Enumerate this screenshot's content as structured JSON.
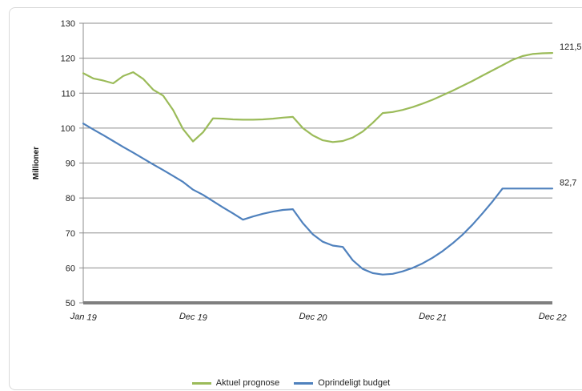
{
  "chart_data": {
    "type": "line",
    "title": "",
    "ylabel": "Millioner",
    "xlabel": "",
    "ylim": [
      50,
      130
    ],
    "yticks": [
      "130",
      "120",
      "110",
      "100",
      "90",
      "80",
      "70",
      "60",
      "50"
    ],
    "xticks": [
      "Jan 19",
      "Dec 19",
      "Dec 20",
      "Dec 21",
      "Dec 22"
    ],
    "x": [
      "Jan 19",
      "Feb 19",
      "Mar 19",
      "Apr 19",
      "May 19",
      "Jun 19",
      "Jul 19",
      "Aug 19",
      "Sep 19",
      "Oct 19",
      "Nov 19",
      "Dec 19",
      "Jan 20",
      "Feb 20",
      "Mar 20",
      "Apr 20",
      "May 20",
      "Jun 20",
      "Jul 20",
      "Aug 20",
      "Sep 20",
      "Oct 20",
      "Nov 20",
      "Dec 20",
      "Jan 21",
      "Feb 21",
      "Mar 21",
      "Apr 21",
      "May 21",
      "Jun 21",
      "Jul 21",
      "Aug 21",
      "Sep 21",
      "Oct 21",
      "Nov 21",
      "Dec 21",
      "Jan 22",
      "Feb 22",
      "Mar 22",
      "Apr 22",
      "May 22",
      "Jun 22",
      "Jul 22",
      "Aug 22",
      "Sep 22",
      "Oct 22",
      "Nov 22",
      "Dec 22"
    ],
    "series": [
      {
        "name": "Aktuel prognose",
        "color": "#9bbb59",
        "end_label": "121,5",
        "values": [
          115.7,
          114.2,
          113.6,
          112.8,
          114.9,
          116.0,
          114.1,
          111.0,
          109.3,
          105.2,
          99.7,
          96.2,
          98.8,
          102.8,
          102.7,
          102.5,
          102.4,
          102.4,
          102.5,
          102.7,
          103.0,
          103.2,
          100.0,
          97.9,
          96.5,
          96.0,
          96.3,
          97.3,
          99.0,
          101.5,
          104.3,
          104.6,
          105.2,
          106.0,
          107.0,
          108.1,
          109.4,
          110.7,
          112.1,
          113.5,
          115.0,
          116.5,
          118.0,
          119.5,
          120.6,
          121.2,
          121.4,
          121.5
        ]
      },
      {
        "name": "Oprindeligt budget",
        "color": "#4f81bd",
        "end_label": "82,7",
        "values": [
          101.3,
          99.6,
          98.0,
          96.3,
          94.6,
          93.0,
          91.3,
          89.6,
          88.0,
          86.3,
          84.6,
          82.4,
          80.9,
          79.1,
          77.3,
          75.6,
          73.8,
          74.7,
          75.5,
          76.1,
          76.6,
          76.8,
          72.8,
          69.6,
          67.5,
          66.4,
          66.0,
          62.2,
          59.7,
          58.5,
          58.1,
          58.3,
          59.0,
          60.0,
          61.3,
          62.9,
          64.8,
          67.0,
          69.5,
          72.4,
          75.6,
          79.0,
          82.7,
          82.7,
          82.7,
          82.7,
          82.7,
          82.7
        ]
      }
    ],
    "grid": true,
    "legend_position": "bottom"
  }
}
